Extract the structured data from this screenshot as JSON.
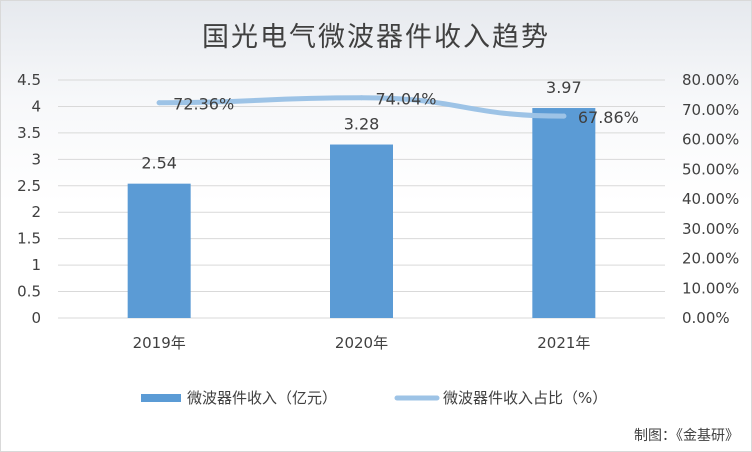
{
  "chart_data": {
    "type": "bar",
    "title": "国光电气微波器件收入趋势",
    "categories": [
      "2019年",
      "2020年",
      "2021年"
    ],
    "series": [
      {
        "name": "微波器件收入（亿元）",
        "type": "bar",
        "axis": "left",
        "color": "#5b9bd5",
        "values": [
          2.54,
          3.28,
          3.97
        ],
        "labels": [
          "2.54",
          "3.28",
          "3.97"
        ]
      },
      {
        "name": "微波器件收入占比（%）",
        "type": "line",
        "axis": "right",
        "color": "#9dc3e6",
        "values": [
          72.36,
          74.04,
          67.86
        ],
        "labels": [
          "72.36%",
          "74.04%",
          "67.86%"
        ]
      }
    ],
    "y_left": {
      "range": [
        0,
        4.5
      ],
      "ticks": [
        "0",
        "0.5",
        "1",
        "1.5",
        "2",
        "2.5",
        "3",
        "3.5",
        "4",
        "4.5"
      ]
    },
    "y_right": {
      "range": [
        0,
        80
      ],
      "ticks": [
        "0.00%",
        "10.00%",
        "20.00%",
        "30.00%",
        "40.00%",
        "50.00%",
        "60.00%",
        "70.00%",
        "80.00%"
      ]
    },
    "grid": true,
    "legend": "bottom"
  },
  "source": "制图：《金基研》"
}
